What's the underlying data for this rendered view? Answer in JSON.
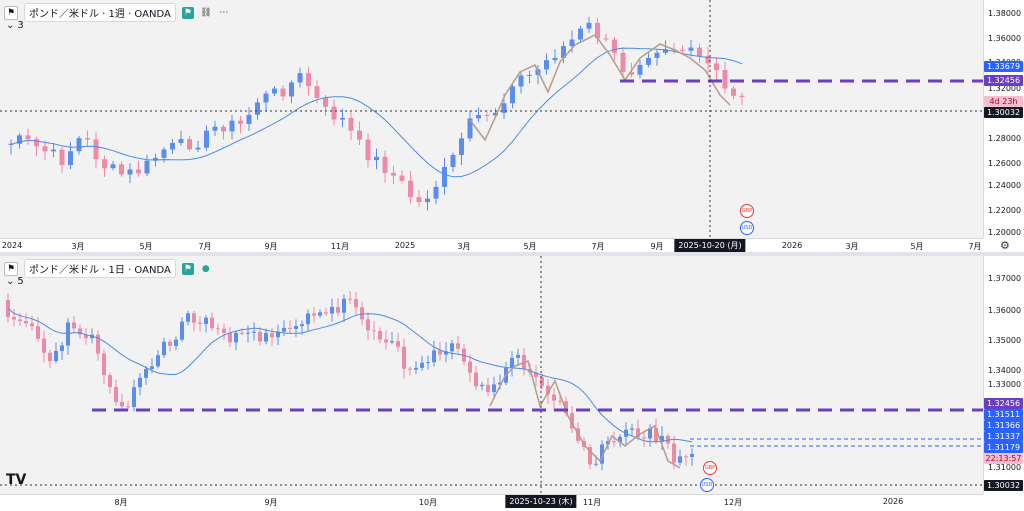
{
  "colors": {
    "up": "#5b8def",
    "down": "#ef8aa6",
    "ma": "#4a8ce8",
    "dash": "#6a3fc2",
    "wave": "#b89a8c"
  },
  "top_pane": {
    "title": "ポンド／米ドル · 1週 · OANDA",
    "indicator_count": "3",
    "price_ticks": [
      "1.38000",
      "1.36000",
      "1.34000",
      "1.32000",
      "1.30000",
      "1.28000",
      "1.26000",
      "1.24000",
      "1.22000",
      "1.20000"
    ],
    "tags": {
      "ma_value": "1.33679",
      "level": "1.32456",
      "countdown": "4d 23h",
      "cursor_price": "1.30032"
    },
    "time_labels": [
      "2024",
      "3月",
      "5月",
      "7月",
      "9月",
      "11月",
      "2025",
      "3月",
      "5月",
      "7月",
      "9月",
      "2026",
      "3月",
      "5月",
      "7月"
    ],
    "cursor_date": "2025-10-20 (月)"
  },
  "bottom_pane": {
    "title": "ポンド／米ドル · 1日 · OANDA",
    "indicator_count": "5",
    "price_ticks": [
      "1.37000",
      "1.36000",
      "1.35000",
      "1.34000",
      "1.33000",
      "1.31000",
      "1.30000"
    ],
    "tags": {
      "level": "1.32456",
      "t1": "1.31511",
      "t2": "1.31366",
      "t3": "1.31337",
      "t4": "1.31179",
      "countdown": "22:13:57",
      "cursor_price": "1.30032"
    },
    "time_labels": [
      "8月",
      "9月",
      "10月",
      "11月",
      "12月",
      "2026"
    ],
    "cursor_date": "2025-10-23 (木)"
  },
  "events": [
    "GBP",
    "USD"
  ],
  "logo_text": "TV"
}
